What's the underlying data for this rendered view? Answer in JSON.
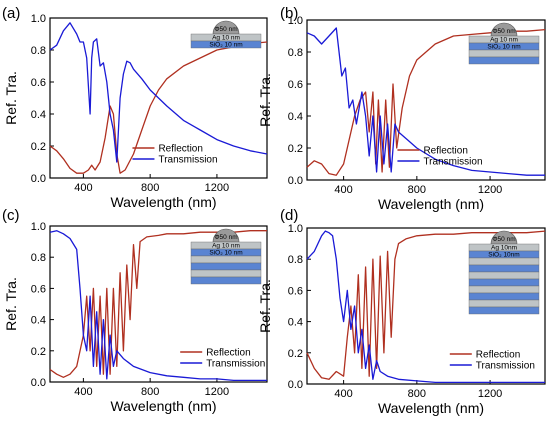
{
  "colors": {
    "reflection": "#b03020",
    "transmission": "#1a1ad6",
    "ag_layer": "#bfc4c6",
    "sio2_layer": "#5a84d2",
    "nanoparticle": "#9a9a9a",
    "axis": "#000000"
  },
  "chart_data": [
    {
      "type": "line",
      "panel_label": "(a)",
      "xlabel": "Wavelength (nm)",
      "ylabel": "Ref. Tra.",
      "xlim": [
        200,
        1500
      ],
      "ylim": [
        0,
        1.0
      ],
      "xticks": [
        400,
        800,
        1200
      ],
      "xticklabels": [
        "400",
        "800",
        "1200"
      ],
      "yticks": [
        0,
        0.2,
        0.4,
        0.6,
        0.8,
        1.0
      ],
      "yticklabels": [
        "0.0",
        "0.2",
        "0.4",
        "0.6",
        "0.8",
        "1.0"
      ],
      "grid": false,
      "legend": "bottom-center",
      "inset": {
        "particle": "Φ50 nm",
        "layers": [
          "Ag 10 nm",
          "SiO₂ 10 nm"
        ],
        "n_pairs": 1
      },
      "series": [
        {
          "name": "Reflection",
          "color": "#b03020",
          "x": [
            200,
            240,
            280,
            320,
            360,
            400,
            430,
            450,
            470,
            500,
            530,
            560,
            580,
            600,
            620,
            650,
            700,
            750,
            800,
            850,
            900,
            1000,
            1100,
            1200,
            1300,
            1400,
            1500
          ],
          "y": [
            0.2,
            0.17,
            0.12,
            0.06,
            0.03,
            0.03,
            0.05,
            0.08,
            0.05,
            0.1,
            0.25,
            0.45,
            0.4,
            0.15,
            0.03,
            0.05,
            0.15,
            0.3,
            0.45,
            0.55,
            0.62,
            0.7,
            0.75,
            0.8,
            0.82,
            0.84,
            0.85
          ]
        },
        {
          "name": "Transmission",
          "color": "#1a1ad6",
          "x": [
            200,
            240,
            280,
            320,
            360,
            380,
            400,
            420,
            440,
            450,
            460,
            480,
            500,
            520,
            540,
            560,
            580,
            600,
            620,
            640,
            660,
            680,
            700,
            750,
            800,
            900,
            1000,
            1100,
            1200,
            1300,
            1400,
            1500
          ],
          "y": [
            0.8,
            0.83,
            0.92,
            0.97,
            0.9,
            0.85,
            0.85,
            0.75,
            0.4,
            0.75,
            0.85,
            0.87,
            0.7,
            0.72,
            0.6,
            0.4,
            0.3,
            0.1,
            0.5,
            0.65,
            0.73,
            0.72,
            0.68,
            0.62,
            0.55,
            0.45,
            0.36,
            0.3,
            0.24,
            0.2,
            0.17,
            0.15
          ]
        }
      ]
    },
    {
      "type": "line",
      "panel_label": "(b)",
      "xlabel": "Wavelength (nm)",
      "ylabel": "Ref. Tra.",
      "xlim": [
        200,
        1500
      ],
      "ylim": [
        0,
        1.0
      ],
      "xticks": [
        400,
        800,
        1200
      ],
      "xticklabels": [
        "400",
        "800",
        "1200"
      ],
      "yticks": [
        0,
        0.2,
        0.4,
        0.6,
        0.8,
        1.0
      ],
      "yticklabels": [
        "0.0",
        "0.2",
        "0.4",
        "0.6",
        "0.8",
        "1.0"
      ],
      "grid": false,
      "legend": "bottom-center",
      "inset": {
        "particle": "Φ50 nm",
        "layers": [
          "Ag 10 nm",
          "SiO₂ 10 nm"
        ],
        "n_pairs": 2
      },
      "series": [
        {
          "name": "Reflection",
          "color": "#b03020",
          "x": [
            200,
            240,
            280,
            320,
            360,
            400,
            430,
            460,
            490,
            520,
            540,
            560,
            575,
            590,
            610,
            630,
            650,
            670,
            690,
            720,
            760,
            800,
            900,
            1000,
            1100,
            1200,
            1300,
            1400,
            1500
          ],
          "y": [
            0.08,
            0.12,
            0.1,
            0.04,
            0.03,
            0.1,
            0.25,
            0.4,
            0.5,
            0.55,
            0.3,
            0.55,
            0.1,
            0.5,
            0.05,
            0.5,
            0.08,
            0.6,
            0.2,
            0.45,
            0.65,
            0.75,
            0.85,
            0.9,
            0.91,
            0.92,
            0.93,
            0.93,
            0.94
          ]
        },
        {
          "name": "Transmission",
          "color": "#1a1ad6",
          "x": [
            200,
            240,
            280,
            320,
            360,
            390,
            410,
            430,
            450,
            470,
            500,
            520,
            540,
            560,
            580,
            600,
            620,
            640,
            660,
            680,
            700,
            750,
            800,
            900,
            1000,
            1100,
            1200,
            1300,
            1400,
            1500
          ],
          "y": [
            0.92,
            0.9,
            0.85,
            0.9,
            0.95,
            0.65,
            0.7,
            0.45,
            0.5,
            0.35,
            0.55,
            0.4,
            0.15,
            0.4,
            0.05,
            0.4,
            0.1,
            0.35,
            0.05,
            0.35,
            0.3,
            0.25,
            0.2,
            0.13,
            0.09,
            0.06,
            0.05,
            0.04,
            0.03,
            0.03
          ]
        }
      ]
    },
    {
      "type": "line",
      "panel_label": "(c)",
      "xlabel": "Wavelength (nm)",
      "ylabel": "Ref. Tra.",
      "xlim": [
        200,
        1500
      ],
      "ylim": [
        0,
        1.0
      ],
      "xticks": [
        400,
        800,
        1200
      ],
      "xticklabels": [
        "400",
        "800",
        "1200"
      ],
      "yticks": [
        0,
        0.2,
        0.4,
        0.6,
        0.8,
        1.0
      ],
      "yticklabels": [
        "0.0",
        "0.2",
        "0.4",
        "0.6",
        "0.8",
        "1.0"
      ],
      "grid": false,
      "legend": "bottom-right",
      "inset": {
        "particle": "Φ50 nm",
        "layers": [
          "Ag 10 nm",
          "SiO₂ 10 nm"
        ],
        "n_pairs": 3
      },
      "series": [
        {
          "name": "Reflection",
          "color": "#b03020",
          "x": [
            200,
            240,
            280,
            320,
            360,
            400,
            420,
            440,
            460,
            480,
            500,
            520,
            540,
            560,
            580,
            600,
            620,
            640,
            660,
            680,
            700,
            720,
            740,
            780,
            850,
            900,
            1000,
            1100,
            1200,
            1300,
            1400,
            1500
          ],
          "y": [
            0.08,
            0.05,
            0.03,
            0.05,
            0.1,
            0.3,
            0.55,
            0.2,
            0.6,
            0.1,
            0.55,
            0.05,
            0.6,
            0.05,
            0.6,
            0.1,
            0.7,
            0.2,
            0.75,
            0.4,
            0.88,
            0.6,
            0.9,
            0.93,
            0.94,
            0.95,
            0.95,
            0.96,
            0.96,
            0.96,
            0.97,
            0.97
          ]
        },
        {
          "name": "Transmission",
          "color": "#1a1ad6",
          "x": [
            200,
            240,
            280,
            320,
            360,
            380,
            400,
            420,
            440,
            460,
            480,
            500,
            520,
            540,
            560,
            580,
            600,
            640,
            700,
            800,
            900,
            1000,
            1100,
            1200,
            1300,
            1400,
            1500
          ],
          "y": [
            0.96,
            0.97,
            0.95,
            0.92,
            0.85,
            0.6,
            0.3,
            0.2,
            0.55,
            0.1,
            0.45,
            0.05,
            0.4,
            0.02,
            0.3,
            0.1,
            0.2,
            0.15,
            0.1,
            0.06,
            0.04,
            0.03,
            0.02,
            0.02,
            0.01,
            0.01,
            0.01
          ]
        }
      ]
    },
    {
      "type": "line",
      "panel_label": "(d)",
      "xlabel": "Wavelength (nm)",
      "ylabel": "Ref. Tra.",
      "xlim": [
        200,
        1500
      ],
      "ylim": [
        0,
        1.0
      ],
      "xticks": [
        400,
        800,
        1200
      ],
      "xticklabels": [
        "400",
        "800",
        "1200"
      ],
      "yticks": [
        0,
        0.2,
        0.4,
        0.6,
        0.8,
        1.0
      ],
      "yticklabels": [
        "0.0",
        "0.2",
        "0.4",
        "0.6",
        "0.8",
        "1.0"
      ],
      "grid": false,
      "legend": "bottom-right",
      "inset": {
        "particle": "Φ50 nm",
        "layers": [
          "Ag 10nm",
          "SiO₂ 10nm"
        ],
        "n_pairs": 5
      },
      "series": [
        {
          "name": "Reflection",
          "color": "#b03020",
          "x": [
            200,
            240,
            280,
            320,
            360,
            400,
            420,
            440,
            460,
            480,
            500,
            520,
            540,
            560,
            580,
            600,
            620,
            640,
            660,
            680,
            700,
            740,
            800,
            900,
            1000,
            1100,
            1200,
            1300,
            1400,
            1500
          ],
          "y": [
            0.2,
            0.1,
            0.04,
            0.03,
            0.08,
            0.05,
            0.3,
            0.5,
            0.2,
            0.7,
            0.1,
            0.75,
            0.05,
            0.8,
            0.1,
            0.82,
            0.2,
            0.85,
            0.3,
            0.8,
            0.9,
            0.93,
            0.95,
            0.96,
            0.96,
            0.97,
            0.97,
            0.97,
            0.97,
            0.98
          ]
        },
        {
          "name": "Transmission",
          "color": "#1a1ad6",
          "x": [
            200,
            240,
            280,
            300,
            320,
            340,
            360,
            380,
            400,
            420,
            440,
            460,
            480,
            500,
            520,
            540,
            560,
            580,
            600,
            640,
            700,
            800,
            900,
            1000,
            1100,
            1200,
            1300,
            1400,
            1500
          ],
          "y": [
            0.8,
            0.85,
            0.95,
            0.98,
            0.97,
            0.95,
            0.8,
            0.55,
            0.4,
            0.6,
            0.35,
            0.5,
            0.2,
            0.35,
            0.1,
            0.25,
            0.03,
            0.15,
            0.08,
            0.05,
            0.03,
            0.02,
            0.01,
            0.01,
            0.01,
            0.01,
            0.01,
            0.01,
            0.01
          ]
        }
      ]
    }
  ]
}
